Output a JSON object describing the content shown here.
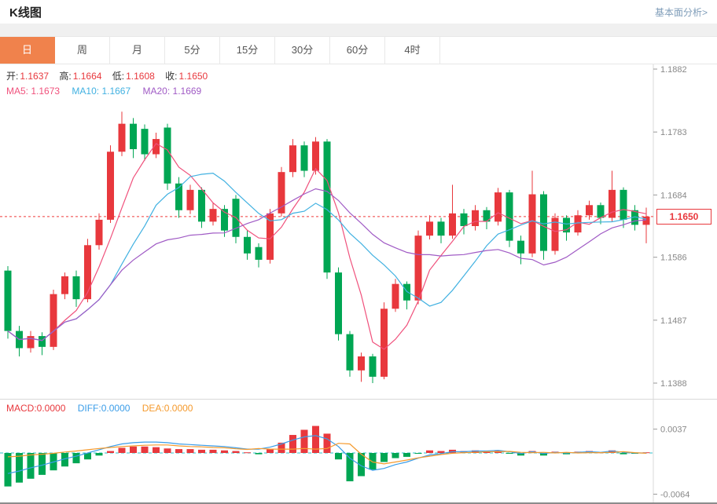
{
  "header": {
    "title": "K线图",
    "link": "基本面分析>"
  },
  "tabs": {
    "items": [
      "日",
      "周",
      "月",
      "5分",
      "15分",
      "30分",
      "60分",
      "4时"
    ],
    "active_index": 0
  },
  "legend": {
    "open_label": "开:",
    "open": "1.1637",
    "high_label": "高:",
    "high": "1.1664",
    "low_label": "低:",
    "low": "1.1608",
    "close_label": "收:",
    "close": "1.1650",
    "ma5_label": "MA5:",
    "ma5": "1.1673",
    "ma10_label": "MA10:",
    "ma10": "1.1667",
    "ma20_label": "MA20:",
    "ma20": "1.1669"
  },
  "macd_legend": {
    "macd_label": "MACD:",
    "macd": "0.0000",
    "diff_label": "DIFF:",
    "diff": "0.0000",
    "dea_label": "DEA:",
    "dea": "0.0000"
  },
  "price_axis": [
    "1.1882",
    "1.1783",
    "1.1684",
    "1.1586",
    "1.1487",
    "1.1388"
  ],
  "macd_axis": [
    "0.0037",
    "-0.0064"
  ],
  "current_price": "1.1650",
  "colors": {
    "up": "#e8383d",
    "down": "#00a653",
    "ma5": "#f0517c",
    "ma10": "#41b1e1",
    "ma20": "#a05bc5",
    "diff_line": "#3b9de8",
    "dea_line": "#f59a2d",
    "zero_line": "#2fc3cc",
    "price_line": "#f03b3b",
    "tab_active": "#f0824c",
    "axis_text": "#888888"
  },
  "chart_data": {
    "type": "candlestick",
    "title": "K线图",
    "interval": "日",
    "legend_ohlc": {
      "open": 1.1637,
      "high": 1.1664,
      "low": 1.1608,
      "close": 1.165
    },
    "ma_values": {
      "ma5": 1.1673,
      "ma10": 1.1667,
      "ma20": 1.1669
    },
    "current_price": 1.165,
    "price_axis_range": [
      1.1388,
      1.1882
    ],
    "macd_axis_range": [
      -0.0064,
      0.0037
    ],
    "candles": [
      [
        1.1565,
        1.1572,
        1.1458,
        1.147
      ],
      [
        1.147,
        1.1478,
        1.143,
        1.1443
      ],
      [
        1.1443,
        1.147,
        1.1436,
        1.1462
      ],
      [
        1.1462,
        1.1468,
        1.1432,
        1.1445
      ],
      [
        1.1445,
        1.1535,
        1.144,
        1.1528
      ],
      [
        1.1528,
        1.1562,
        1.152,
        1.1556
      ],
      [
        1.1556,
        1.1565,
        1.1508,
        1.152
      ],
      [
        1.152,
        1.1615,
        1.1515,
        1.1605
      ],
      [
        1.1605,
        1.1655,
        1.1598,
        1.1645
      ],
      [
        1.1645,
        1.1762,
        1.164,
        1.1752
      ],
      [
        1.1752,
        1.1815,
        1.1745,
        1.1796
      ],
      [
        1.1796,
        1.1805,
        1.1742,
        1.1756
      ],
      [
        1.1788,
        1.1795,
        1.1738,
        1.1748
      ],
      [
        1.1748,
        1.1782,
        1.1742,
        1.1772
      ],
      [
        1.179,
        1.1796,
        1.1692,
        1.1702
      ],
      [
        1.1702,
        1.1712,
        1.1648,
        1.166
      ],
      [
        1.166,
        1.17,
        1.1654,
        1.1692
      ],
      [
        1.1692,
        1.1696,
        1.1632,
        1.1642
      ],
      [
        1.1642,
        1.1672,
        1.1636,
        1.1662
      ],
      [
        1.1662,
        1.1668,
        1.1618,
        1.1628
      ],
      [
        1.1678,
        1.1684,
        1.1608,
        1.1618
      ],
      [
        1.1618,
        1.1628,
        1.1582,
        1.1592
      ],
      [
        1.1602,
        1.1608,
        1.157,
        1.1582
      ],
      [
        1.1582,
        1.1662,
        1.1576,
        1.1655
      ],
      [
        1.1655,
        1.1728,
        1.165,
        1.172
      ],
      [
        1.172,
        1.1772,
        1.1712,
        1.1762
      ],
      [
        1.1762,
        1.1768,
        1.1712,
        1.1722
      ],
      [
        1.1722,
        1.1775,
        1.1716,
        1.1768
      ],
      [
        1.1768,
        1.1772,
        1.1552,
        1.1562
      ],
      [
        1.1562,
        1.157,
        1.1455,
        1.1465
      ],
      [
        1.1465,
        1.147,
        1.1398,
        1.1408
      ],
      [
        1.1408,
        1.1436,
        1.139,
        1.143
      ],
      [
        1.143,
        1.1434,
        1.1388,
        1.1398
      ],
      [
        1.1398,
        1.1515,
        1.1394,
        1.1505
      ],
      [
        1.1505,
        1.1552,
        1.15,
        1.1544
      ],
      [
        1.1544,
        1.1548,
        1.1504,
        1.1518
      ],
      [
        1.1518,
        1.1628,
        1.1512,
        1.162
      ],
      [
        1.162,
        1.1652,
        1.1614,
        1.1642
      ],
      [
        1.1642,
        1.1648,
        1.1608,
        1.162
      ],
      [
        1.162,
        1.17,
        1.1615,
        1.1655
      ],
      [
        1.1655,
        1.1662,
        1.1622,
        1.1635
      ],
      [
        1.1635,
        1.1668,
        1.1628,
        1.166
      ],
      [
        1.166,
        1.1665,
        1.163,
        1.1642
      ],
      [
        1.1642,
        1.1695,
        1.1636,
        1.1688
      ],
      [
        1.1688,
        1.1692,
        1.1602,
        1.1612
      ],
      [
        1.1612,
        1.162,
        1.1575,
        1.1592
      ],
      [
        1.1592,
        1.1722,
        1.1586,
        1.1685
      ],
      [
        1.1685,
        1.169,
        1.1582,
        1.1596
      ],
      [
        1.1596,
        1.1655,
        1.159,
        1.1648
      ],
      [
        1.1648,
        1.1652,
        1.1612,
        1.1625
      ],
      [
        1.1625,
        1.166,
        1.162,
        1.1652
      ],
      [
        1.1652,
        1.1675,
        1.1645,
        1.1668
      ],
      [
        1.1668,
        1.1672,
        1.1638,
        1.1648
      ],
      [
        1.1648,
        1.1722,
        1.1642,
        1.1692
      ],
      [
        1.1692,
        1.1696,
        1.1632,
        1.1645
      ],
      [
        1.166,
        1.1668,
        1.1628,
        1.1637
      ],
      [
        1.1637,
        1.1664,
        1.1608,
        1.165
      ]
    ],
    "macd": {
      "hist": [
        -0.0052,
        -0.0046,
        -0.004,
        -0.0034,
        -0.0027,
        -0.0021,
        -0.0016,
        -0.001,
        -0.0004,
        0.0003,
        0.0008,
        0.001,
        0.001,
        0.0009,
        0.0007,
        0.0006,
        0.0006,
        0.0005,
        0.0005,
        0.0004,
        0.0003,
        0.0001,
        -0.0002,
        0.0006,
        0.0016,
        0.0028,
        0.0036,
        0.0042,
        0.003,
        -0.001,
        -0.0044,
        -0.0036,
        -0.0026,
        -0.0014,
        -0.0008,
        -0.0006,
        -0.0001,
        0.0004,
        0.0003,
        0.0005,
        0.0003,
        0.0004,
        0.0002,
        0.0004,
        -0.0001,
        -0.0004,
        0.0003,
        -0.0004,
        0.0002,
        -0.0002,
        0.0002,
        0.0003,
        0.0001,
        0.0004,
        -0.0002,
        -0.0001,
        0.0001
      ],
      "diff": [
        -0.0032,
        -0.0028,
        -0.0023,
        -0.0019,
        -0.0014,
        -0.0009,
        -0.0005,
        0.0,
        0.0005,
        0.001,
        0.0014,
        0.0016,
        0.0017,
        0.0017,
        0.0016,
        0.0014,
        0.0013,
        0.0012,
        0.0011,
        0.001,
        0.0008,
        0.0006,
        0.0006,
        0.0009,
        0.0014,
        0.002,
        0.0025,
        0.0027,
        0.0022,
        0.001,
        -0.0008,
        -0.002,
        -0.0027,
        -0.0024,
        -0.0018,
        -0.0014,
        -0.0008,
        -0.0003,
        -0.0001,
        0.0002,
        0.0002,
        0.0003,
        0.0003,
        0.0004,
        0.0002,
        -0.0001,
        0.0002,
        -0.0001,
        0.0001,
        0.0,
        0.0001,
        0.0002,
        0.0001,
        0.0003,
        0.0001,
        0.0,
        0.0
      ]
    }
  }
}
